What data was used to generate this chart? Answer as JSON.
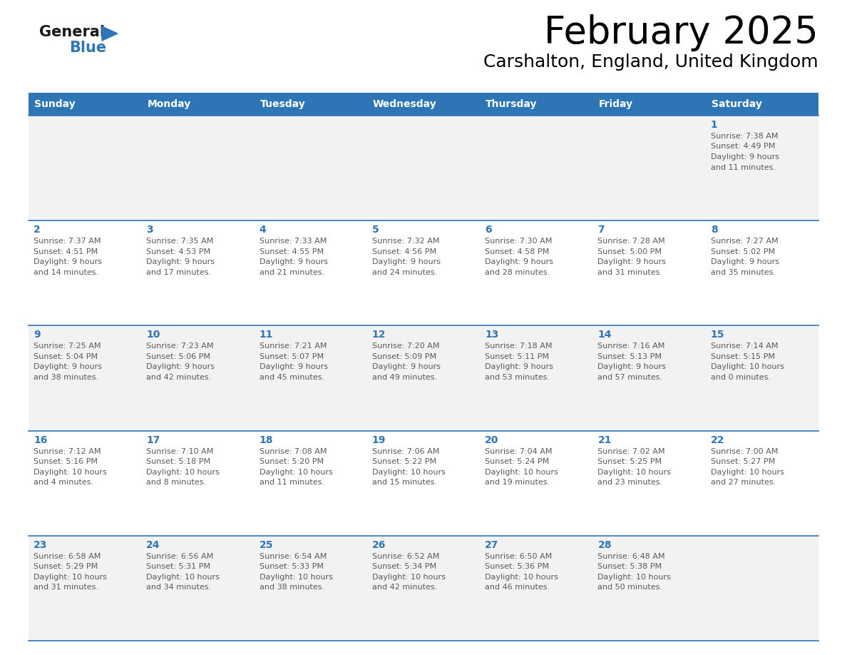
{
  "title": "February 2025",
  "subtitle": "Carshalton, England, United Kingdom",
  "days_of_week": [
    "Sunday",
    "Monday",
    "Tuesday",
    "Wednesday",
    "Thursday",
    "Friday",
    "Saturday"
  ],
  "header_bg_color": "#2E75B6",
  "header_text_color": "#FFFFFF",
  "row0_bg": "#F2F2F2",
  "odd_row_bg": "#F2F2F2",
  "even_row_bg": "#FFFFFF",
  "line_color": "#2E75B6",
  "day_number_color": "#2E75B6",
  "text_color": "#595959",
  "title_color": "#000000",
  "subtitle_color": "#000000",
  "logo_general_color": "#1a1a1a",
  "logo_blue_color": "#2E75B6",
  "cells": [
    {
      "day": 1,
      "row": 0,
      "col": 6,
      "sunrise": "7:38 AM",
      "sunset": "4:49 PM",
      "daylight": "9 hours and 11 minutes."
    },
    {
      "day": 2,
      "row": 1,
      "col": 0,
      "sunrise": "7:37 AM",
      "sunset": "4:51 PM",
      "daylight": "9 hours and 14 minutes."
    },
    {
      "day": 3,
      "row": 1,
      "col": 1,
      "sunrise": "7:35 AM",
      "sunset": "4:53 PM",
      "daylight": "9 hours and 17 minutes."
    },
    {
      "day": 4,
      "row": 1,
      "col": 2,
      "sunrise": "7:33 AM",
      "sunset": "4:55 PM",
      "daylight": "9 hours and 21 minutes."
    },
    {
      "day": 5,
      "row": 1,
      "col": 3,
      "sunrise": "7:32 AM",
      "sunset": "4:56 PM",
      "daylight": "9 hours and 24 minutes."
    },
    {
      "day": 6,
      "row": 1,
      "col": 4,
      "sunrise": "7:30 AM",
      "sunset": "4:58 PM",
      "daylight": "9 hours and 28 minutes."
    },
    {
      "day": 7,
      "row": 1,
      "col": 5,
      "sunrise": "7:28 AM",
      "sunset": "5:00 PM",
      "daylight": "9 hours and 31 minutes."
    },
    {
      "day": 8,
      "row": 1,
      "col": 6,
      "sunrise": "7:27 AM",
      "sunset": "5:02 PM",
      "daylight": "9 hours and 35 minutes."
    },
    {
      "day": 9,
      "row": 2,
      "col": 0,
      "sunrise": "7:25 AM",
      "sunset": "5:04 PM",
      "daylight": "9 hours and 38 minutes."
    },
    {
      "day": 10,
      "row": 2,
      "col": 1,
      "sunrise": "7:23 AM",
      "sunset": "5:06 PM",
      "daylight": "9 hours and 42 minutes."
    },
    {
      "day": 11,
      "row": 2,
      "col": 2,
      "sunrise": "7:21 AM",
      "sunset": "5:07 PM",
      "daylight": "9 hours and 45 minutes."
    },
    {
      "day": 12,
      "row": 2,
      "col": 3,
      "sunrise": "7:20 AM",
      "sunset": "5:09 PM",
      "daylight": "9 hours and 49 minutes."
    },
    {
      "day": 13,
      "row": 2,
      "col": 4,
      "sunrise": "7:18 AM",
      "sunset": "5:11 PM",
      "daylight": "9 hours and 53 minutes."
    },
    {
      "day": 14,
      "row": 2,
      "col": 5,
      "sunrise": "7:16 AM",
      "sunset": "5:13 PM",
      "daylight": "9 hours and 57 minutes."
    },
    {
      "day": 15,
      "row": 2,
      "col": 6,
      "sunrise": "7:14 AM",
      "sunset": "5:15 PM",
      "daylight": "10 hours and 0 minutes."
    },
    {
      "day": 16,
      "row": 3,
      "col": 0,
      "sunrise": "7:12 AM",
      "sunset": "5:16 PM",
      "daylight": "10 hours and 4 minutes."
    },
    {
      "day": 17,
      "row": 3,
      "col": 1,
      "sunrise": "7:10 AM",
      "sunset": "5:18 PM",
      "daylight": "10 hours and 8 minutes."
    },
    {
      "day": 18,
      "row": 3,
      "col": 2,
      "sunrise": "7:08 AM",
      "sunset": "5:20 PM",
      "daylight": "10 hours and 11 minutes."
    },
    {
      "day": 19,
      "row": 3,
      "col": 3,
      "sunrise": "7:06 AM",
      "sunset": "5:22 PM",
      "daylight": "10 hours and 15 minutes."
    },
    {
      "day": 20,
      "row": 3,
      "col": 4,
      "sunrise": "7:04 AM",
      "sunset": "5:24 PM",
      "daylight": "10 hours and 19 minutes."
    },
    {
      "day": 21,
      "row": 3,
      "col": 5,
      "sunrise": "7:02 AM",
      "sunset": "5:25 PM",
      "daylight": "10 hours and 23 minutes."
    },
    {
      "day": 22,
      "row": 3,
      "col": 6,
      "sunrise": "7:00 AM",
      "sunset": "5:27 PM",
      "daylight": "10 hours and 27 minutes."
    },
    {
      "day": 23,
      "row": 4,
      "col": 0,
      "sunrise": "6:58 AM",
      "sunset": "5:29 PM",
      "daylight": "10 hours and 31 minutes."
    },
    {
      "day": 24,
      "row": 4,
      "col": 1,
      "sunrise": "6:56 AM",
      "sunset": "5:31 PM",
      "daylight": "10 hours and 34 minutes."
    },
    {
      "day": 25,
      "row": 4,
      "col": 2,
      "sunrise": "6:54 AM",
      "sunset": "5:33 PM",
      "daylight": "10 hours and 38 minutes."
    },
    {
      "day": 26,
      "row": 4,
      "col": 3,
      "sunrise": "6:52 AM",
      "sunset": "5:34 PM",
      "daylight": "10 hours and 42 minutes."
    },
    {
      "day": 27,
      "row": 4,
      "col": 4,
      "sunrise": "6:50 AM",
      "sunset": "5:36 PM",
      "daylight": "10 hours and 46 minutes."
    },
    {
      "day": 28,
      "row": 4,
      "col": 5,
      "sunrise": "6:48 AM",
      "sunset": "5:38 PM",
      "daylight": "10 hours and 50 minutes."
    }
  ]
}
